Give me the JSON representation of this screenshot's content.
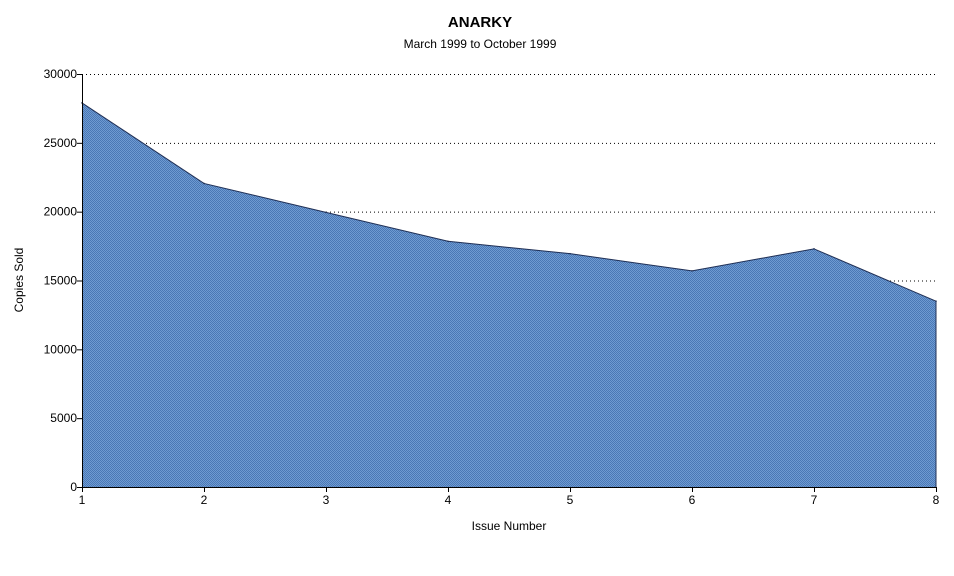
{
  "chart_data": {
    "type": "area",
    "title": "ANARKY",
    "subtitle": "March 1999 to October 1999",
    "xlabel": "Issue Number",
    "ylabel": "Copies Sold",
    "x": [
      1,
      2,
      3,
      4,
      5,
      6,
      7,
      8
    ],
    "series": [
      {
        "values": [
          27900,
          22050,
          19950,
          17850,
          16950,
          15700,
          17300,
          13500
        ]
      }
    ],
    "ylim": [
      0,
      30000
    ],
    "yticks": [
      0,
      5000,
      10000,
      15000,
      20000,
      25000,
      30000
    ],
    "xticks": [
      1,
      2,
      3,
      4,
      5,
      6,
      7,
      8
    ],
    "grid": "horizontal-dotted",
    "legend": "none",
    "colors": {
      "fill": "#5b8cc8",
      "line": "#1f2f55",
      "axis": "#000000",
      "grid": "#000000"
    }
  }
}
